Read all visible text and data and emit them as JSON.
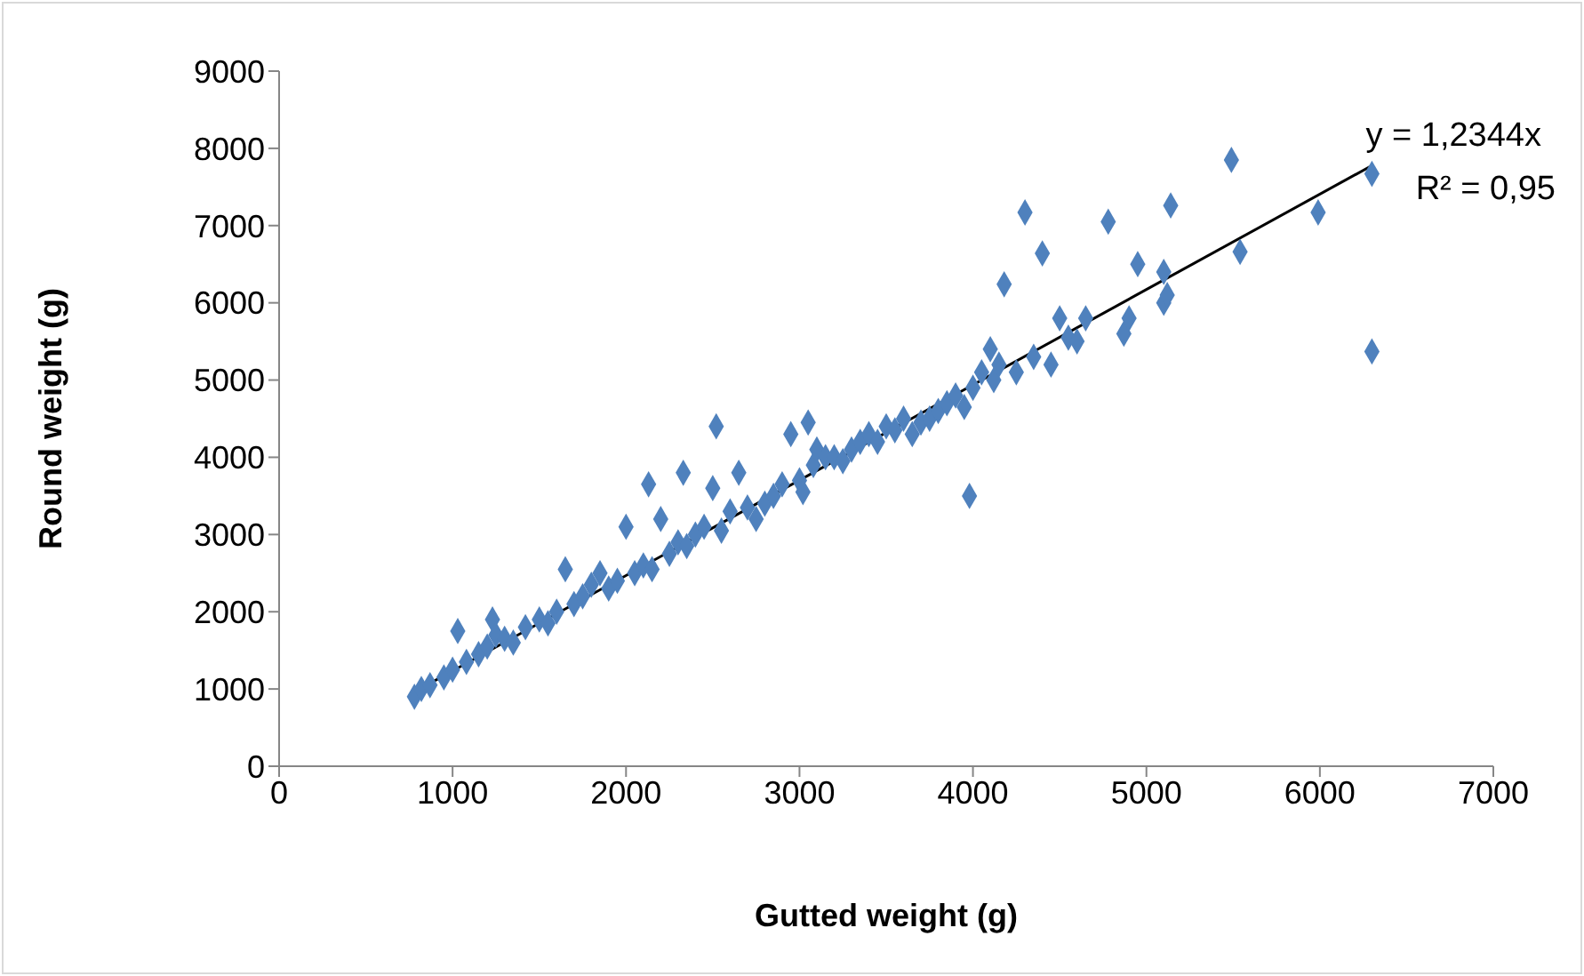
{
  "chart_data": {
    "type": "scatter",
    "xlabel": "Gutted weight (g)",
    "ylabel": "Round weight (g)",
    "xlim": [
      0,
      7000
    ],
    "xticks": [
      0,
      1000,
      2000,
      3000,
      4000,
      5000,
      6000,
      7000
    ],
    "ylim": [
      0,
      9000
    ],
    "yticks": [
      0,
      1000,
      2000,
      3000,
      4000,
      5000,
      6000,
      7000,
      8000,
      9000
    ],
    "marker": "diamond",
    "annotations": [
      "y = 1,2344x",
      "R² = 0,95"
    ],
    "series": [
      {
        "color": "#4f81bd",
        "x": [
          780,
          820,
          870,
          950,
          1000,
          1030,
          1080,
          1150,
          1200,
          1230,
          1250,
          1300,
          1350,
          1420,
          1500,
          1550,
          1600,
          1650,
          1700,
          1750,
          1800,
          1850,
          1900,
          1950,
          2000,
          2050,
          2100,
          2130,
          2150,
          2200,
          2250,
          2300,
          2330,
          2350,
          2400,
          2450,
          2500,
          2520,
          2550,
          2600,
          2650,
          2700,
          2750,
          2800,
          2850,
          2900,
          2950,
          3000,
          3020,
          3050,
          3080,
          3100,
          3150,
          3200,
          3250,
          3300,
          3350,
          3400,
          3450,
          3500,
          3550,
          3600,
          3650,
          3700,
          3750,
          3800,
          3850,
          3900,
          3950,
          3980,
          4000,
          4050,
          4100,
          4120,
          4150,
          4180,
          4250,
          4300,
          4350,
          4400,
          4450,
          4500,
          4550,
          4600,
          4650,
          4780,
          4870,
          4900,
          4950,
          5100,
          5100,
          5120,
          5140,
          5490,
          5540,
          5990,
          6300,
          6300
        ],
        "values": [
          900,
          1000,
          1050,
          1150,
          1250,
          1750,
          1350,
          1450,
          1550,
          1900,
          1700,
          1650,
          1600,
          1800,
          1900,
          1850,
          2000,
          2550,
          2100,
          2200,
          2350,
          2500,
          2300,
          2400,
          3100,
          2500,
          2600,
          3650,
          2550,
          3200,
          2750,
          2900,
          3800,
          2850,
          3000,
          3100,
          3600,
          4400,
          3050,
          3300,
          3800,
          3350,
          3200,
          3400,
          3500,
          3650,
          4300,
          3700,
          3550,
          4450,
          3900,
          4100,
          4000,
          4000,
          3950,
          4100,
          4200,
          4300,
          4200,
          4400,
          4350,
          4500,
          4300,
          4450,
          4500,
          4600,
          4700,
          4800,
          4650,
          3500,
          4900,
          5100,
          5400,
          5000,
          5200,
          6240,
          5100,
          7170,
          5300,
          6640,
          5200,
          5800,
          5550,
          5500,
          5800,
          7050,
          5600,
          5800,
          6500,
          6000,
          6400,
          6100,
          7260,
          7850,
          6660,
          7170,
          7670,
          5370
        ]
      },
      {
        "type": "line",
        "marker": "none",
        "color": "#000000",
        "x": [
          780,
          6300
        ],
        "values": [
          963,
          7777
        ]
      }
    ]
  }
}
